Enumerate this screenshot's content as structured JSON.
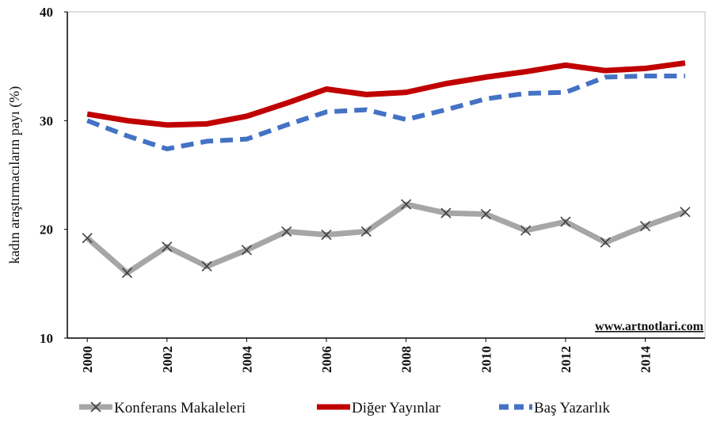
{
  "chart_data": {
    "type": "line",
    "y_label": "kadın araştırmacıların payı (%)",
    "annotation": "www.artnotlari.com",
    "x": [
      2000,
      2001,
      2002,
      2003,
      2004,
      2005,
      2006,
      2007,
      2008,
      2009,
      2010,
      2011,
      2012,
      2013,
      2014,
      2015
    ],
    "xlim": [
      1999.5,
      2015.5
    ],
    "xticks": [
      2000,
      2002,
      2004,
      2006,
      2008,
      2010,
      2012,
      2014
    ],
    "ylim": [
      10,
      40
    ],
    "yticks": [
      10,
      20,
      30,
      40
    ],
    "grid": false,
    "legend": "bottom",
    "series": [
      {
        "name": "Konferans Makaleleri",
        "color": "#a6a6a6",
        "style": "solid",
        "marker": "x",
        "values": [
          19.2,
          16.0,
          18.4,
          16.6,
          18.1,
          19.8,
          19.5,
          19.8,
          22.3,
          21.5,
          21.4,
          19.9,
          20.7,
          18.8,
          20.3,
          21.6
        ]
      },
      {
        "name": "Diğer Yayınlar",
        "color": "#c00000",
        "style": "solid",
        "values": [
          30.6,
          30.0,
          29.6,
          29.7,
          30.4,
          31.6,
          32.9,
          32.4,
          32.6,
          33.4,
          34.0,
          34.5,
          35.1,
          34.6,
          34.8,
          35.3
        ]
      },
      {
        "name": "Baş Yazarlık",
        "color": "#4472c4",
        "style": "dashed",
        "values": [
          30.0,
          28.6,
          27.4,
          28.1,
          28.3,
          29.6,
          30.8,
          31.0,
          30.1,
          31.0,
          32.0,
          32.5,
          32.6,
          34.0,
          34.1,
          34.1
        ]
      }
    ]
  }
}
